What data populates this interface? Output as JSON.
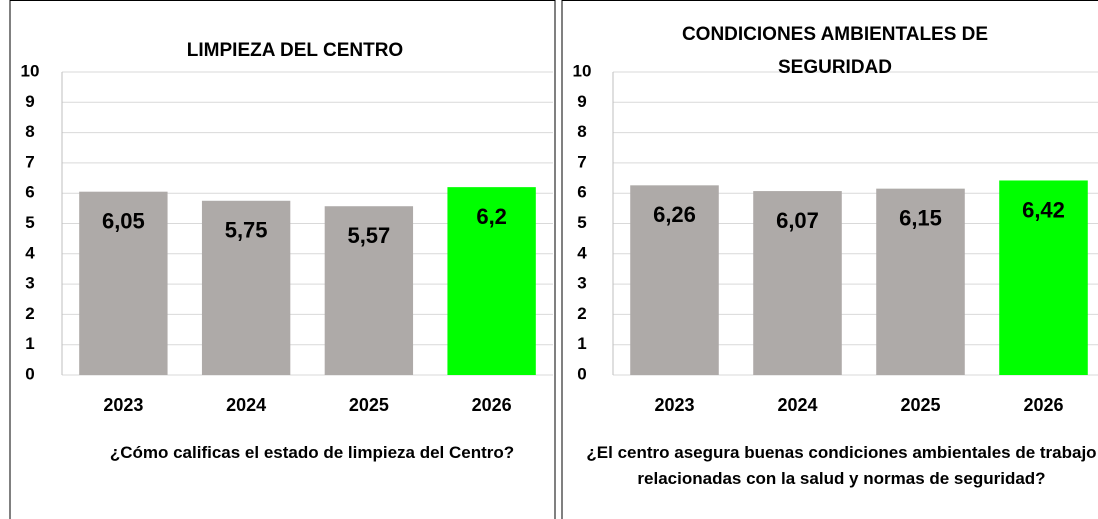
{
  "chart_data": [
    {
      "type": "bar",
      "title": "LIMPIEZA DEL CENTRO",
      "xlabel": "¿Cómo calificas el estado de limpieza del Centro?",
      "categories": [
        "2023",
        "2024",
        "2025",
        "2026"
      ],
      "values": [
        6.05,
        5.75,
        5.57,
        6.2
      ],
      "value_labels": [
        "6,05",
        "5,75",
        "5,57",
        "6,2"
      ],
      "colors": [
        "#aeaaa8",
        "#aeaaa8",
        "#aeaaa8",
        "#00ff00"
      ],
      "ylim": [
        0,
        10
      ],
      "yticks": [
        0,
        1,
        2,
        3,
        4,
        5,
        6,
        7,
        8,
        9,
        10
      ],
      "grid": true
    },
    {
      "type": "bar",
      "title": "CONDICIONES AMBIENTALES DE SEGURIDAD",
      "xlabel": "¿El centro asegura buenas condiciones ambientales de trabajo relacionadas con la salud y normas de seguridad?",
      "categories": [
        "2023",
        "2024",
        "2025",
        "2026"
      ],
      "values": [
        6.26,
        6.07,
        6.15,
        6.42
      ],
      "value_labels": [
        "6,26",
        "6,07",
        "6,15",
        "6,42"
      ],
      "colors": [
        "#aeaaa8",
        "#aeaaa8",
        "#aeaaa8",
        "#00ff00"
      ],
      "ylim": [
        0,
        10
      ],
      "yticks": [
        0,
        1,
        2,
        3,
        4,
        5,
        6,
        7,
        8,
        9,
        10
      ],
      "grid": true
    }
  ]
}
